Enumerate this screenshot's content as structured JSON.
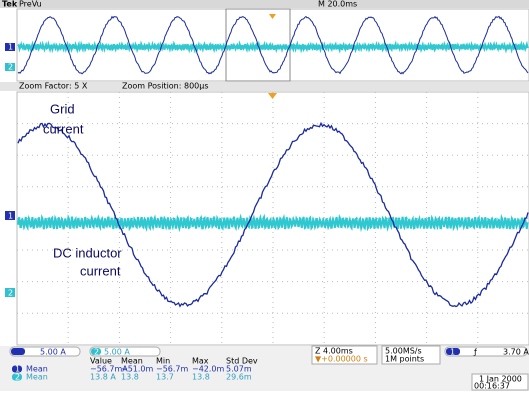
{
  "header": {
    "brand": "Tek",
    "mode": "PreVu",
    "timebase": "M 20.0ms"
  },
  "zoom": {
    "factor": "Zoom Factor: 5 X",
    "position": "Zoom Position: 800µs"
  },
  "annotations": {
    "grid": [
      "Grid",
      "current"
    ],
    "dc": [
      "DC inductor",
      "current"
    ]
  },
  "channels": [
    {
      "label": "1",
      "scale": "5.00 A"
    },
    {
      "label": "2",
      "scale": "5.00 A"
    }
  ],
  "horizontal": {
    "zoom_scale": "Z 4.00ms",
    "offset": "▼+0.00000 s",
    "sample_rate": "5.00MS/s",
    "record": "1M points"
  },
  "trigger": {
    "source": "1",
    "slope": "ƒ",
    "level": "3.70 A"
  },
  "measurements": {
    "headers": [
      "Value",
      "Mean",
      "Min",
      "Max",
      "Std Dev"
    ],
    "rows": [
      {
        "label": "Mean",
        "cells": [
          "−56.7mA",
          "−51.0m",
          "−56.7m",
          "−42.0m",
          "5.07m"
        ]
      },
      {
        "label": "Mean",
        "cells": [
          "13.8 A",
          "13.8",
          "13.7",
          "13.8",
          "29.6m"
        ]
      }
    ]
  },
  "datetime": [
    "1 Jan 2000",
    "00:16:37"
  ]
}
